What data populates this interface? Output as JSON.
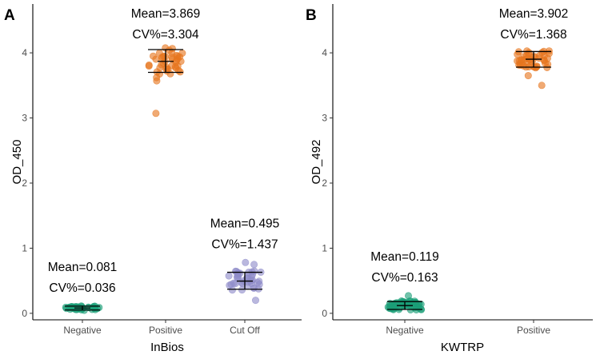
{
  "chart_data": [
    {
      "type": "scatter",
      "panel_label": "A",
      "xlabel": "InBios",
      "ylabel": "OD_450",
      "ylim": [
        -0.1,
        4.75
      ],
      "yticks": [
        0,
        1,
        2,
        3,
        4
      ],
      "categories": [
        "Negative",
        "Positive",
        "Cut Off"
      ],
      "groups": [
        {
          "name": "Negative",
          "color": "#1b9e77",
          "center": 0.081,
          "low": 0.05,
          "high": 0.11,
          "n": 40,
          "outliers": [],
          "annotation": {
            "mean": "Mean=0.081",
            "cv": "CV%=0.036"
          }
        },
        {
          "name": "Positive",
          "color": "#e6761f",
          "center": 3.869,
          "low": 3.7,
          "high": 4.05,
          "n": 40,
          "outliers": [
            3.07,
            3.57,
            3.62
          ],
          "annotation": {
            "mean": "Mean=3.869",
            "cv": "CV%=3.304"
          }
        },
        {
          "name": "Cut Off",
          "color": "#8f8cc9",
          "center": 0.495,
          "low": 0.37,
          "high": 0.63,
          "n": 40,
          "outliers": [
            0.2,
            0.78,
            0.75
          ],
          "annotation": {
            "mean": "Mean=0.495",
            "cv": "CV%=1.437"
          }
        }
      ]
    },
    {
      "type": "scatter",
      "panel_label": "B",
      "xlabel": "KWTRP",
      "ylabel": "OD_492",
      "ylim": [
        -0.1,
        4.75
      ],
      "yticks": [
        0,
        1,
        2,
        3,
        4
      ],
      "categories": [
        "Negative",
        "Positive"
      ],
      "groups": [
        {
          "name": "Negative",
          "color": "#1b9e77",
          "center": 0.119,
          "low": 0.06,
          "high": 0.18,
          "n": 55,
          "outliers": [
            0.27
          ],
          "annotation": {
            "mean": "Mean=0.119",
            "cv": "CV%=0.163"
          }
        },
        {
          "name": "Positive",
          "color": "#e6761f",
          "center": 3.902,
          "low": 3.78,
          "high": 4.02,
          "n": 45,
          "outliers": [
            3.5,
            3.65
          ],
          "annotation": {
            "mean": "Mean=3.902",
            "cv": "CV%=1.368"
          }
        }
      ]
    }
  ]
}
